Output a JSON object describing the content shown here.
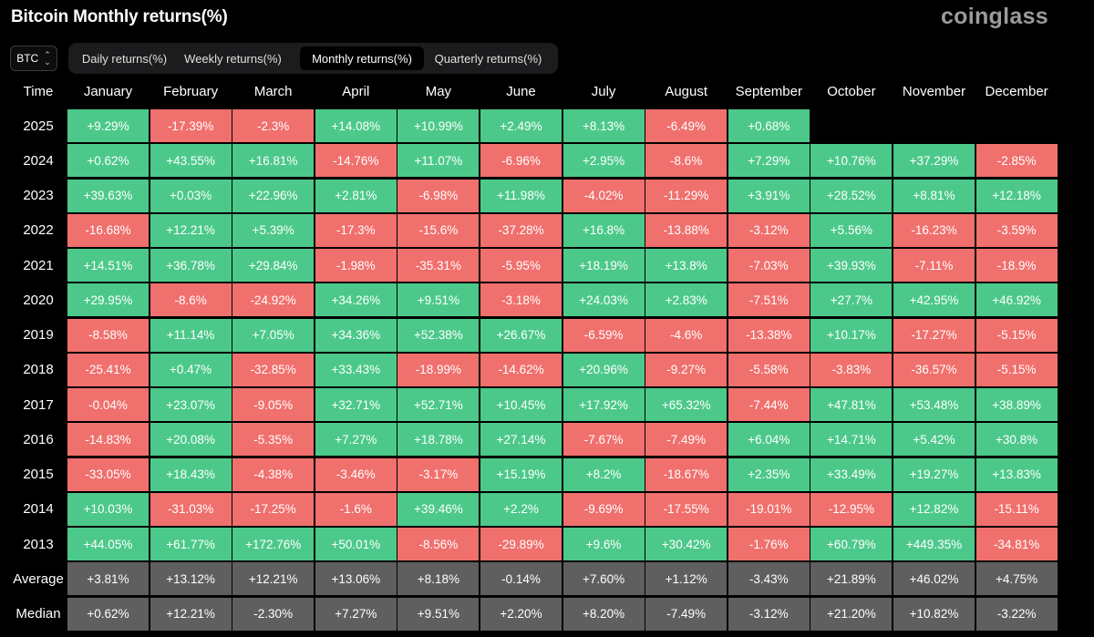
{
  "header": {
    "title": "Bitcoin Monthly returns(%)",
    "logo": "coinglass"
  },
  "asset_select": {
    "value": "BTC",
    "icon": "chevron-updown-icon"
  },
  "tabs": [
    {
      "label": "Daily returns(%)",
      "active": false
    },
    {
      "label": "Weekly returns(%)",
      "active": false
    },
    {
      "label": "Monthly returns(%)",
      "active": true
    },
    {
      "label": "Quarterly returns(%)",
      "active": false
    }
  ],
  "colors": {
    "positive": "#4cc98a",
    "negative": "#f0706d",
    "stat": "#5f5f5f",
    "background": "#000000"
  },
  "table": {
    "columns": [
      "Time",
      "January",
      "February",
      "March",
      "April",
      "May",
      "June",
      "July",
      "August",
      "September",
      "October",
      "November",
      "December"
    ],
    "rows": [
      {
        "label": "2025",
        "values": [
          "+9.29%",
          "-17.39%",
          "-2.3%",
          "+14.08%",
          "+10.99%",
          "+2.49%",
          "+8.13%",
          "-6.49%",
          "+0.68%",
          "",
          "",
          ""
        ]
      },
      {
        "label": "2024",
        "values": [
          "+0.62%",
          "+43.55%",
          "+16.81%",
          "-14.76%",
          "+11.07%",
          "-6.96%",
          "+2.95%",
          "-8.6%",
          "+7.29%",
          "+10.76%",
          "+37.29%",
          "-2.85%"
        ]
      },
      {
        "label": "2023",
        "values": [
          "+39.63%",
          "+0.03%",
          "+22.96%",
          "+2.81%",
          "-6.98%",
          "+11.98%",
          "-4.02%",
          "-11.29%",
          "+3.91%",
          "+28.52%",
          "+8.81%",
          "+12.18%"
        ]
      },
      {
        "label": "2022",
        "values": [
          "-16.68%",
          "+12.21%",
          "+5.39%",
          "-17.3%",
          "-15.6%",
          "-37.28%",
          "+16.8%",
          "-13.88%",
          "-3.12%",
          "+5.56%",
          "-16.23%",
          "-3.59%"
        ]
      },
      {
        "label": "2021",
        "values": [
          "+14.51%",
          "+36.78%",
          "+29.84%",
          "-1.98%",
          "-35.31%",
          "-5.95%",
          "+18.19%",
          "+13.8%",
          "-7.03%",
          "+39.93%",
          "-7.11%",
          "-18.9%"
        ]
      },
      {
        "label": "2020",
        "values": [
          "+29.95%",
          "-8.6%",
          "-24.92%",
          "+34.26%",
          "+9.51%",
          "-3.18%",
          "+24.03%",
          "+2.83%",
          "-7.51%",
          "+27.7%",
          "+42.95%",
          "+46.92%"
        ]
      },
      {
        "label": "2019",
        "values": [
          "-8.58%",
          "+11.14%",
          "+7.05%",
          "+34.36%",
          "+52.38%",
          "+26.67%",
          "-6.59%",
          "-4.6%",
          "-13.38%",
          "+10.17%",
          "-17.27%",
          "-5.15%"
        ]
      },
      {
        "label": "2018",
        "values": [
          "-25.41%",
          "+0.47%",
          "-32.85%",
          "+33.43%",
          "-18.99%",
          "-14.62%",
          "+20.96%",
          "-9.27%",
          "-5.58%",
          "-3.83%",
          "-36.57%",
          "-5.15%"
        ]
      },
      {
        "label": "2017",
        "values": [
          "-0.04%",
          "+23.07%",
          "-9.05%",
          "+32.71%",
          "+52.71%",
          "+10.45%",
          "+17.92%",
          "+65.32%",
          "-7.44%",
          "+47.81%",
          "+53.48%",
          "+38.89%"
        ]
      },
      {
        "label": "2016",
        "values": [
          "-14.83%",
          "+20.08%",
          "-5.35%",
          "+7.27%",
          "+18.78%",
          "+27.14%",
          "-7.67%",
          "-7.49%",
          "+6.04%",
          "+14.71%",
          "+5.42%",
          "+30.8%"
        ]
      },
      {
        "label": "2015",
        "values": [
          "-33.05%",
          "+18.43%",
          "-4.38%",
          "-3.46%",
          "-3.17%",
          "+15.19%",
          "+8.2%",
          "-18.67%",
          "+2.35%",
          "+33.49%",
          "+19.27%",
          "+13.83%"
        ]
      },
      {
        "label": "2014",
        "values": [
          "+10.03%",
          "-31.03%",
          "-17.25%",
          "-1.6%",
          "+39.46%",
          "+2.2%",
          "-9.69%",
          "-17.55%",
          "-19.01%",
          "-12.95%",
          "+12.82%",
          "-15.11%"
        ]
      },
      {
        "label": "2013",
        "values": [
          "+44.05%",
          "+61.77%",
          "+172.76%",
          "+50.01%",
          "-8.56%",
          "-29.89%",
          "+9.6%",
          "+30.42%",
          "-1.76%",
          "+60.79%",
          "+449.35%",
          "-34.81%"
        ]
      }
    ],
    "stats": [
      {
        "label": "Average",
        "values": [
          "+3.81%",
          "+13.12%",
          "+12.21%",
          "+13.06%",
          "+8.18%",
          "-0.14%",
          "+7.60%",
          "+1.12%",
          "-3.43%",
          "+21.89%",
          "+46.02%",
          "+4.75%"
        ]
      },
      {
        "label": "Median",
        "values": [
          "+0.62%",
          "+12.21%",
          "-2.30%",
          "+7.27%",
          "+9.51%",
          "+2.20%",
          "+8.20%",
          "-7.49%",
          "-3.12%",
          "+21.20%",
          "+10.82%",
          "-3.22%"
        ]
      }
    ]
  }
}
